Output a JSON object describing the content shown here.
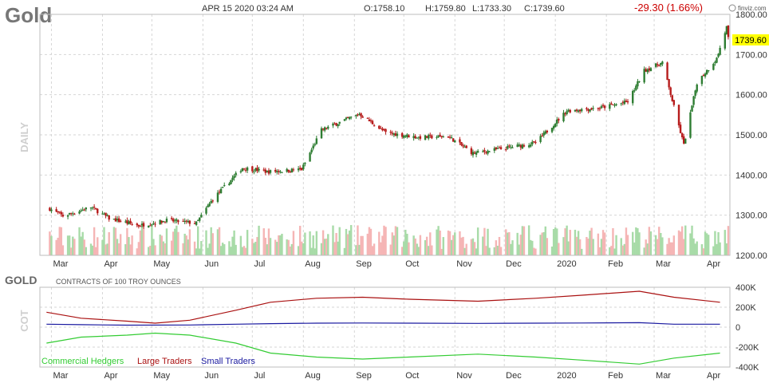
{
  "header": {
    "title": "Gold",
    "datetime": "APR 15 2020 03:24 AM",
    "open": "O:1758.10",
    "high": "H:1759.80",
    "low": "L:1733.30",
    "close": "C:1739.60",
    "change": "-29.30 (1.66%)",
    "brand": "finviz.com"
  },
  "colors": {
    "up": "#2e7d32",
    "down": "#b71c1c",
    "vol_up": "#a8dba8",
    "vol_down": "#f5b5b5",
    "commercial": "#33cc33",
    "large": "#aa1111",
    "small": "#1a1aa0",
    "last_price_bg": "#ffff00"
  },
  "chart_data": [
    {
      "type": "candlestick",
      "series_name": "Gold",
      "side_label": "DAILY",
      "x_tick_labels": [
        "Mar",
        "Apr",
        "May",
        "Jun",
        "Jul",
        "Aug",
        "Sep",
        "Oct",
        "Nov",
        "Dec",
        "2020",
        "Feb",
        "Mar",
        "Apr"
      ],
      "y_tick_labels": [
        "1800.00",
        "1700.00",
        "1600.00",
        "1500.00",
        "1400.00",
        "1300.00",
        "1200.00"
      ],
      "ylim": [
        1200,
        1800
      ],
      "last_price": "1739.60",
      "closes_approx": [
        {
          "date": "2019-02-28",
          "close": 1316
        },
        {
          "date": "2019-03-08",
          "close": 1298
        },
        {
          "date": "2019-03-25",
          "close": 1320
        },
        {
          "date": "2019-04-05",
          "close": 1292
        },
        {
          "date": "2019-04-23",
          "close": 1274
        },
        {
          "date": "2019-05-10",
          "close": 1287
        },
        {
          "date": "2019-05-28",
          "close": 1280
        },
        {
          "date": "2019-06-07",
          "close": 1340
        },
        {
          "date": "2019-06-25",
          "close": 1418
        },
        {
          "date": "2019-07-10",
          "close": 1408
        },
        {
          "date": "2019-07-31",
          "close": 1414
        },
        {
          "date": "2019-08-12",
          "close": 1512
        },
        {
          "date": "2019-09-04",
          "close": 1552
        },
        {
          "date": "2019-09-20",
          "close": 1505
        },
        {
          "date": "2019-10-10",
          "close": 1494
        },
        {
          "date": "2019-10-28",
          "close": 1496
        },
        {
          "date": "2019-11-12",
          "close": 1454
        },
        {
          "date": "2019-11-29",
          "close": 1465
        },
        {
          "date": "2019-12-20",
          "close": 1480
        },
        {
          "date": "2020-01-08",
          "close": 1560
        },
        {
          "date": "2020-01-28",
          "close": 1567
        },
        {
          "date": "2020-02-14",
          "close": 1582
        },
        {
          "date": "2020-02-24",
          "close": 1660
        },
        {
          "date": "2020-03-06",
          "close": 1680
        },
        {
          "date": "2020-03-19",
          "close": 1475
        },
        {
          "date": "2020-03-27",
          "close": 1630
        },
        {
          "date": "2020-04-08",
          "close": 1690
        },
        {
          "date": "2020-04-14",
          "close": 1768
        },
        {
          "date": "2020-04-15",
          "close": 1739.6
        }
      ]
    },
    {
      "type": "line",
      "title": "GOLD",
      "subtitle": "CONTRACTS OF 100 TROY OUNCES",
      "side_label": "COT",
      "x_tick_labels": [
        "Mar",
        "Apr",
        "May",
        "Jun",
        "Jul",
        "Aug",
        "Sep",
        "Oct",
        "Nov",
        "Dec",
        "2020",
        "Feb",
        "Mar",
        "Apr"
      ],
      "y_tick_labels": [
        "400K",
        "200K",
        "0",
        "-200K",
        "-400K"
      ],
      "ylim": [
        -400000,
        400000
      ],
      "series": [
        {
          "name": "Commercial Hedgers",
          "points": [
            [
              "2019-02-26",
              -160000
            ],
            [
              "2019-03-19",
              -100000
            ],
            [
              "2019-04-16",
              -80000
            ],
            [
              "2019-05-03",
              -60000
            ],
            [
              "2019-05-24",
              -80000
            ],
            [
              "2019-06-21",
              -160000
            ],
            [
              "2019-07-12",
              -260000
            ],
            [
              "2019-08-09",
              -300000
            ],
            [
              "2019-09-06",
              -320000
            ],
            [
              "2019-10-04",
              -300000
            ],
            [
              "2019-11-15",
              -270000
            ],
            [
              "2019-12-20",
              -300000
            ],
            [
              "2020-01-17",
              -330000
            ],
            [
              "2020-02-21",
              -370000
            ],
            [
              "2020-03-13",
              -310000
            ],
            [
              "2020-04-10",
              -260000
            ]
          ]
        },
        {
          "name": "Large Traders",
          "points": [
            [
              "2019-02-26",
              150000
            ],
            [
              "2019-03-19",
              90000
            ],
            [
              "2019-04-16",
              60000
            ],
            [
              "2019-05-03",
              40000
            ],
            [
              "2019-05-24",
              70000
            ],
            [
              "2019-06-21",
              170000
            ],
            [
              "2019-07-12",
              250000
            ],
            [
              "2019-08-09",
              290000
            ],
            [
              "2019-09-06",
              300000
            ],
            [
              "2019-10-04",
              280000
            ],
            [
              "2019-11-15",
              260000
            ],
            [
              "2019-12-20",
              290000
            ],
            [
              "2020-01-17",
              320000
            ],
            [
              "2020-02-21",
              360000
            ],
            [
              "2020-03-13",
              300000
            ],
            [
              "2020-04-10",
              250000
            ]
          ]
        },
        {
          "name": "Small Traders",
          "points": [
            [
              "2019-02-26",
              30000
            ],
            [
              "2019-03-19",
              25000
            ],
            [
              "2019-04-16",
              20000
            ],
            [
              "2019-05-24",
              22000
            ],
            [
              "2019-06-21",
              30000
            ],
            [
              "2019-07-12",
              35000
            ],
            [
              "2019-08-09",
              40000
            ],
            [
              "2019-09-06",
              42000
            ],
            [
              "2019-10-04",
              40000
            ],
            [
              "2019-11-15",
              38000
            ],
            [
              "2019-12-20",
              40000
            ],
            [
              "2020-01-17",
              42000
            ],
            [
              "2020-02-21",
              45000
            ],
            [
              "2020-03-13",
              30000
            ],
            [
              "2020-04-10",
              30000
            ]
          ]
        }
      ]
    }
  ]
}
